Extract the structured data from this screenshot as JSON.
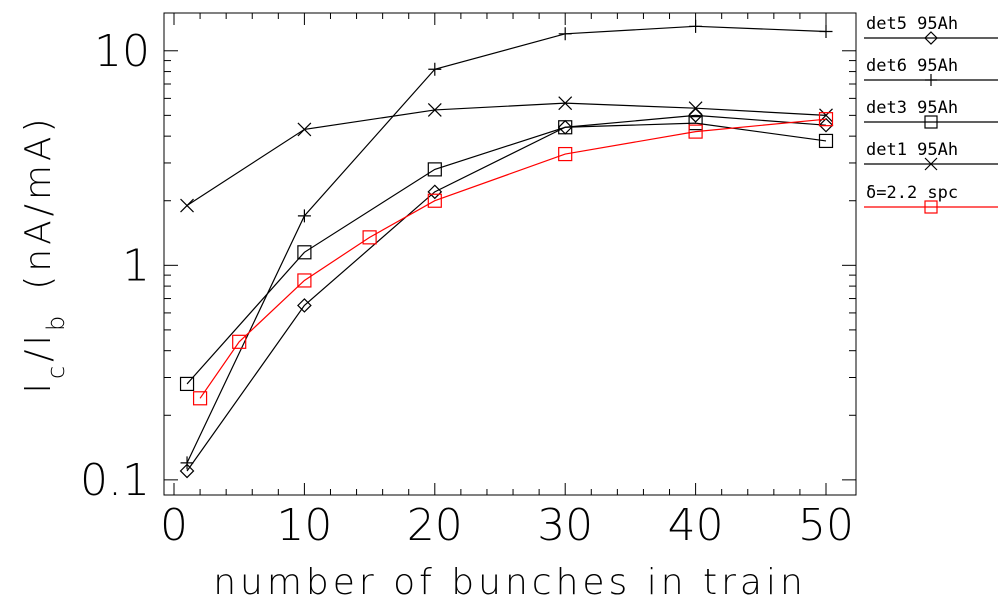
{
  "chart_data": {
    "type": "line",
    "xlabel": "number of bunches in train",
    "ylabel_main": "I",
    "ylabel_sub1": "c",
    "ylabel_slash": "/I",
    "ylabel_sub2": "b",
    "ylabel_units": "(nA/mA)",
    "xlim": [
      -2,
      52
    ],
    "ylim": [
      0.085,
      15
    ],
    "y_scale": "log",
    "x_ticks": [
      0,
      10,
      20,
      30,
      40,
      50
    ],
    "x_tick_labels": [
      "0",
      "10",
      "20",
      "30",
      "40",
      "50"
    ],
    "y_ticks": [
      0.1,
      1,
      10
    ],
    "y_tick_labels": [
      "0.1",
      "1",
      "10"
    ],
    "legend_position": "right",
    "series": [
      {
        "name": "det5  95Ah",
        "marker": "diamond",
        "color": "#000000",
        "x": [
          1,
          10,
          20,
          30,
          40,
          50
        ],
        "y": [
          0.11,
          0.65,
          2.2,
          4.4,
          5.0,
          4.5
        ]
      },
      {
        "name": "det6  95Ah",
        "marker": "plus",
        "color": "#000000",
        "x": [
          1,
          10,
          20,
          30,
          40,
          50
        ],
        "y": [
          0.12,
          1.7,
          8.2,
          12.0,
          13.0,
          12.3
        ]
      },
      {
        "name": "det3  95Ah",
        "marker": "square",
        "color": "#000000",
        "x": [
          1,
          10,
          20,
          30,
          40,
          50
        ],
        "y": [
          0.28,
          1.15,
          2.8,
          4.4,
          4.6,
          3.8
        ]
      },
      {
        "name": "det1  95Ah",
        "marker": "x",
        "color": "#000000",
        "x": [
          1,
          10,
          20,
          30,
          40,
          50
        ],
        "y": [
          1.9,
          4.3,
          5.3,
          5.7,
          5.4,
          5.0
        ]
      },
      {
        "name": "δ=2.2  spc",
        "marker": "square",
        "color": "#ff0000",
        "x": [
          2,
          5,
          10,
          15,
          20,
          30,
          40,
          50
        ],
        "y": [
          0.24,
          0.44,
          0.85,
          1.35,
          2.0,
          3.3,
          4.2,
          4.8
        ]
      }
    ]
  }
}
